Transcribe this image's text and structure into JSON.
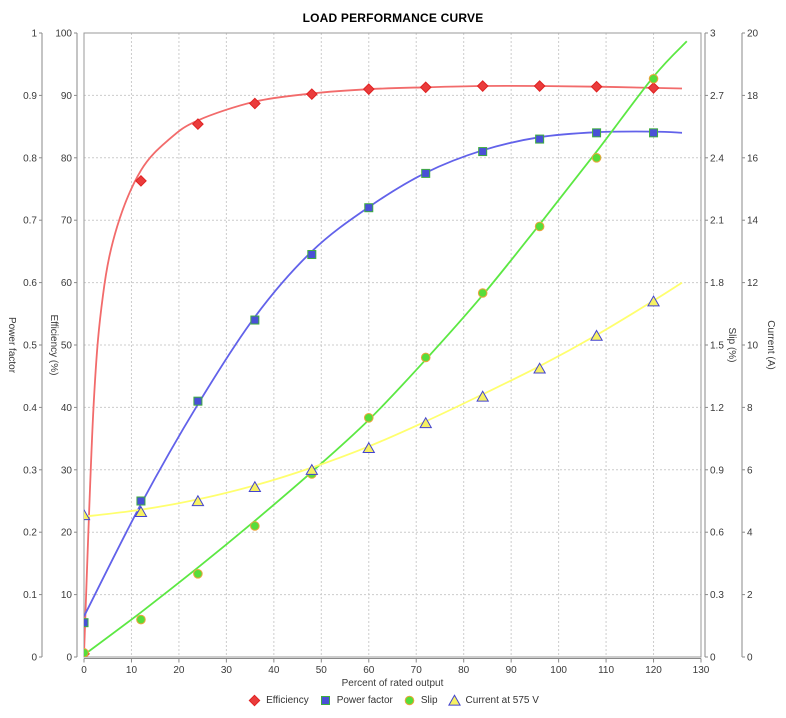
{
  "title": "LOAD PERFORMANCE CURVE",
  "chart_data": {
    "type": "line",
    "title": "LOAD PERFORMANCE CURVE",
    "xlabel": "Percent of rated output",
    "x_range": [
      0,
      130
    ],
    "x_tick_step": 10,
    "grid": true,
    "legend_position": "bottom",
    "x": [
      0,
      12,
      24,
      36,
      48,
      60,
      72,
      84,
      96,
      108,
      120
    ],
    "axes": [
      {
        "id": "power_factor",
        "label": "Power factor",
        "min": 0,
        "max": 1,
        "tick_step": 0.1,
        "side": "left"
      },
      {
        "id": "efficiency",
        "label": "Efficiency (%)",
        "min": 0,
        "max": 100,
        "tick_step": 10,
        "side": "left"
      },
      {
        "id": "slip",
        "label": "Slip (%)",
        "min": 0,
        "max": 3,
        "tick_step": 0.3,
        "side": "right"
      },
      {
        "id": "current",
        "label": "Current (A)",
        "min": 0,
        "max": 20,
        "tick_step": 2,
        "side": "right"
      }
    ],
    "series": [
      {
        "name": "Efficiency",
        "axis": "efficiency",
        "marker": "diamond",
        "marker_fill": "#ea3c3c",
        "marker_stroke": "#e02222",
        "line_color": "#f26b6b",
        "values": [
          0.5,
          76.3,
          85.4,
          88.7,
          90.2,
          91.0,
          91.3,
          91.5,
          91.5,
          91.4,
          91.2
        ],
        "curve": [
          [
            0,
            0.5
          ],
          [
            2,
            40
          ],
          [
            4,
            58
          ],
          [
            7,
            69
          ],
          [
            12,
            78
          ],
          [
            18,
            83
          ],
          [
            24,
            86
          ],
          [
            36,
            89
          ],
          [
            48,
            90.3
          ],
          [
            60,
            91.0
          ],
          [
            72,
            91.3
          ],
          [
            84,
            91.5
          ],
          [
            96,
            91.5
          ],
          [
            108,
            91.4
          ],
          [
            120,
            91.2
          ],
          [
            126,
            91.1
          ]
        ]
      },
      {
        "name": "Power factor",
        "axis": "power_factor",
        "marker": "square",
        "marker_fill": "#4950d6",
        "marker_stroke": "#3fae3f",
        "line_color": "#6262ea",
        "values": [
          0.055,
          0.25,
          0.41,
          0.54,
          0.645,
          0.72,
          0.775,
          0.81,
          0.83,
          0.84,
          0.84
        ],
        "curve": [
          [
            0,
            0.065
          ],
          [
            12,
            0.245
          ],
          [
            24,
            0.405
          ],
          [
            36,
            0.545
          ],
          [
            48,
            0.65
          ],
          [
            60,
            0.721
          ],
          [
            72,
            0.776
          ],
          [
            84,
            0.812
          ],
          [
            96,
            0.833
          ],
          [
            108,
            0.841
          ],
          [
            120,
            0.842
          ],
          [
            126,
            0.84
          ]
        ]
      },
      {
        "name": "Slip",
        "axis": "slip",
        "marker": "circle",
        "marker_fill": "#57dd3a",
        "marker_stroke": "#eda53a",
        "line_color": "#5ce843",
        "values": [
          0.02,
          0.18,
          0.4,
          0.63,
          0.88,
          1.15,
          1.44,
          1.75,
          2.07,
          2.4,
          2.78
        ],
        "curve": [
          [
            0,
            0.01
          ],
          [
            12,
            0.215
          ],
          [
            24,
            0.43
          ],
          [
            36,
            0.655
          ],
          [
            48,
            0.89
          ],
          [
            60,
            1.14
          ],
          [
            72,
            1.43
          ],
          [
            84,
            1.74
          ],
          [
            96,
            2.08
          ],
          [
            108,
            2.43
          ],
          [
            120,
            2.79
          ],
          [
            127,
            2.96
          ]
        ]
      },
      {
        "name": "Current at 575 V",
        "axis": "current",
        "marker": "triangle",
        "marker_fill": "#f6f163",
        "marker_stroke": "#4343cf",
        "line_color": "#ffff6e",
        "values": [
          4.55,
          4.65,
          5.0,
          5.45,
          6.0,
          6.7,
          7.5,
          8.35,
          9.25,
          10.3,
          11.4
        ],
        "curve": [
          [
            0,
            4.5
          ],
          [
            12,
            4.72
          ],
          [
            24,
            5.05
          ],
          [
            36,
            5.5
          ],
          [
            48,
            6.07
          ],
          [
            60,
            6.75
          ],
          [
            72,
            7.55
          ],
          [
            84,
            8.42
          ],
          [
            96,
            9.32
          ],
          [
            108,
            10.32
          ],
          [
            120,
            11.42
          ],
          [
            126,
            12.0
          ]
        ]
      }
    ]
  },
  "colors": {
    "grid": "#cccccc",
    "border": "#999999",
    "axis_line": "#8a8a8a",
    "tick": "#8a8a8a",
    "tick_label": "#3a3a3a",
    "axis_title": "#3a3a3a",
    "background": "#ffffff"
  }
}
